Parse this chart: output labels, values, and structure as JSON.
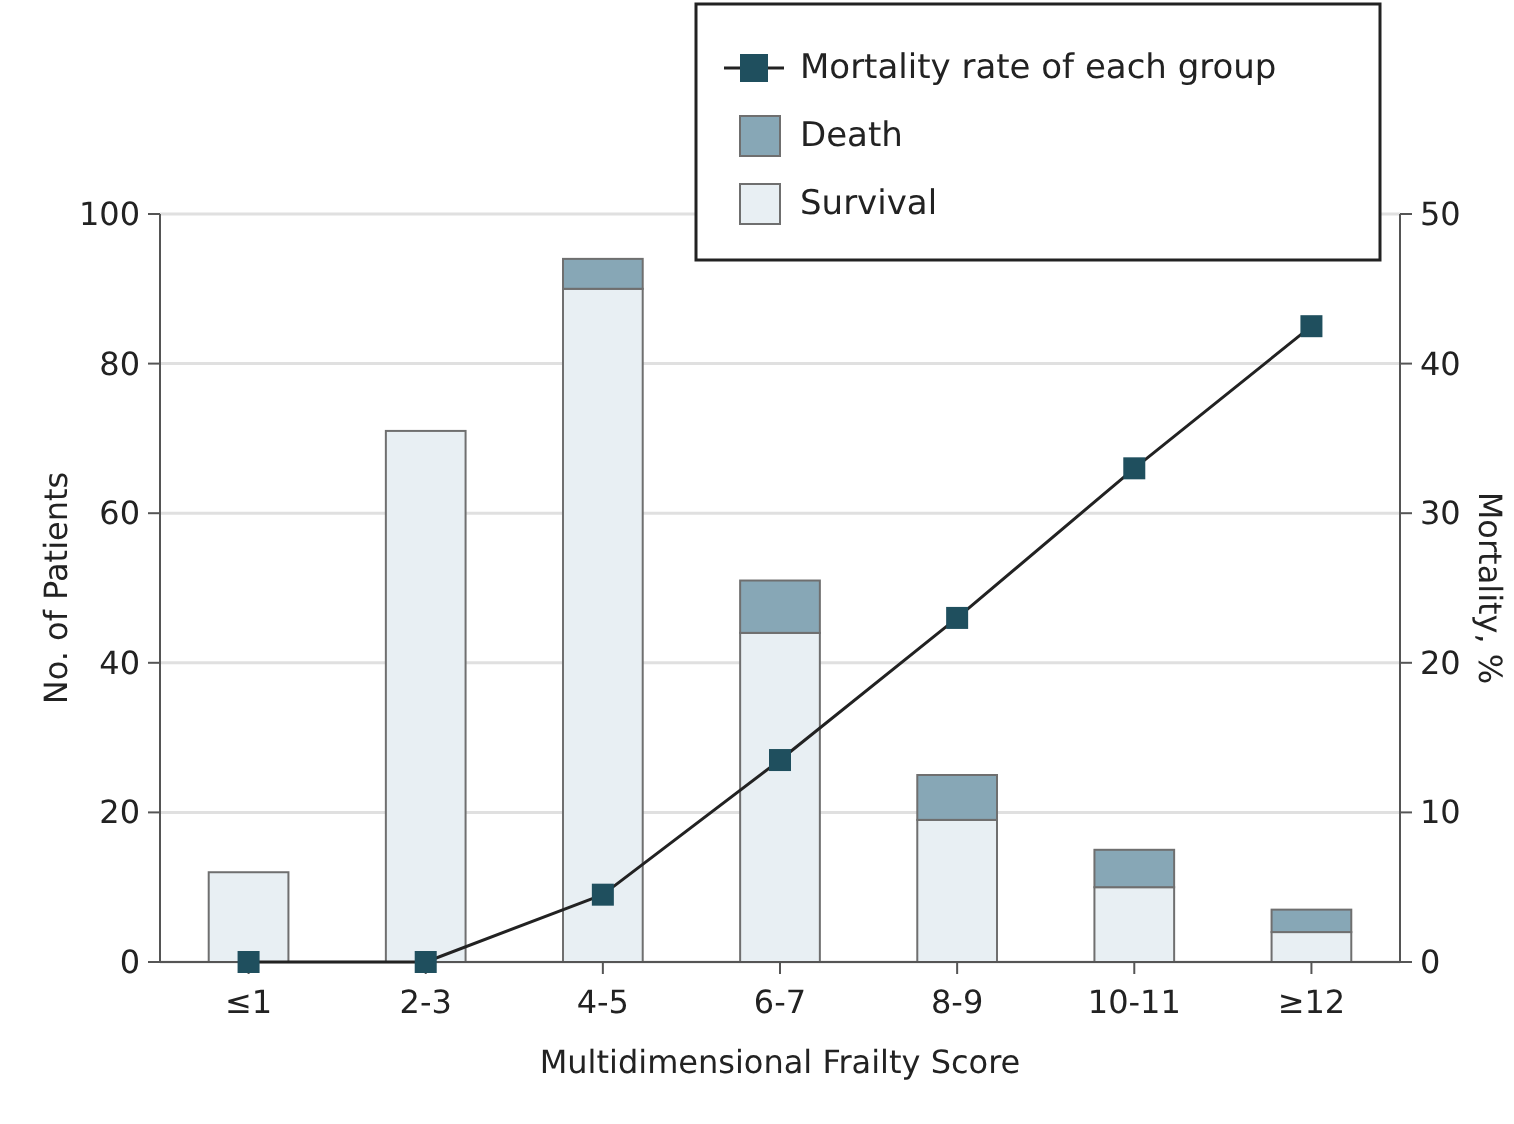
{
  "chart_data": {
    "type": "bar",
    "stacked": true,
    "xlabel": "Multidimensional Frailty Score",
    "ylabel": "No. of Patients",
    "y2label": "Mortality, %",
    "categories": [
      "≤1",
      "2-3",
      "4-5",
      "6-7",
      "8-9",
      "10-11",
      "≥12"
    ],
    "series": [
      {
        "name": "Survival",
        "color": "#e8eff3",
        "values": [
          12,
          71,
          90,
          44,
          19,
          10,
          4
        ]
      },
      {
        "name": "Death",
        "color": "#87a7b6",
        "values": [
          0,
          0,
          4,
          7,
          6,
          5,
          3
        ]
      },
      {
        "name": "Mortality rate of each group",
        "type": "line",
        "axis": "y2",
        "color": "#1f4f5e",
        "marker": "square",
        "values": [
          0,
          0,
          4.5,
          13.5,
          23,
          33,
          42.5
        ]
      }
    ],
    "ylim": [
      0,
      100
    ],
    "yticks": [
      0,
      20,
      40,
      60,
      80,
      100
    ],
    "y2lim": [
      0,
      50
    ],
    "y2ticks": [
      0,
      10,
      20,
      30,
      40,
      50
    ],
    "grid": "y",
    "legend": "top right"
  }
}
